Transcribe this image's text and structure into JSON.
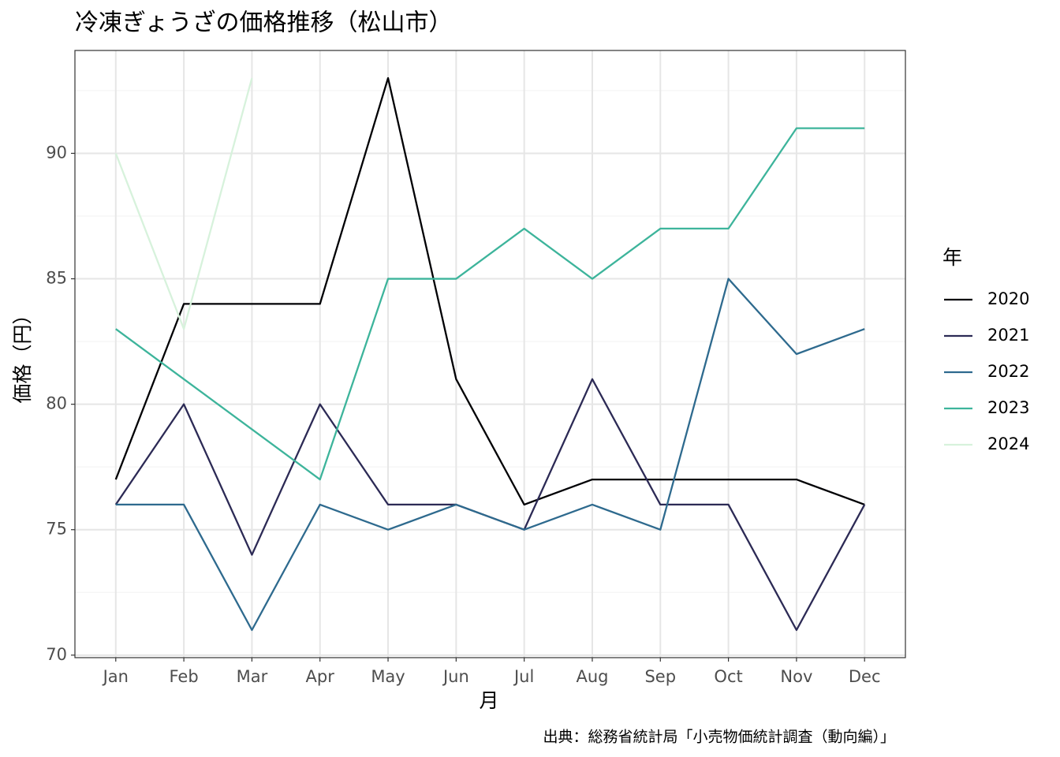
{
  "chart_data": {
    "type": "line",
    "title": "冷凍ぎょうざの価格推移（松山市）",
    "x_label": "月",
    "y_label": "価格（円）",
    "caption": "出典：総務省統計局「小売物価統計調査（動向編）」",
    "legend_title": "年",
    "legend": "right",
    "grid": true,
    "categories": [
      "Jan",
      "Feb",
      "Mar",
      "Apr",
      "May",
      "Jun",
      "Jul",
      "Aug",
      "Sep",
      "Oct",
      "Nov",
      "Dec"
    ],
    "ylim": [
      69.9,
      94.1
    ],
    "yticks": [
      70,
      75,
      80,
      85,
      90
    ],
    "minor_yticks": [
      72.5,
      77.5,
      82.5,
      87.5,
      92.5
    ],
    "series": [
      {
        "name": "2020",
        "color": "#000004",
        "values": [
          77,
          84,
          84,
          84,
          93,
          81,
          76,
          77,
          77,
          77,
          77,
          76
        ]
      },
      {
        "name": "2021",
        "color": "#2c2a55",
        "values": [
          76,
          80,
          74,
          80,
          76,
          76,
          75,
          81,
          76,
          76,
          71,
          76
        ]
      },
      {
        "name": "2022",
        "color": "#2e6a8e",
        "values": [
          76,
          76,
          71,
          76,
          75,
          76,
          75,
          76,
          75,
          85,
          82,
          83
        ]
      },
      {
        "name": "2023",
        "color": "#3db49b",
        "values": [
          83,
          81,
          79,
          77,
          85,
          85,
          87,
          85,
          87,
          87,
          91,
          91
        ]
      },
      {
        "name": "2024",
        "color": "#d7f2dc",
        "values": [
          90,
          83,
          93,
          null,
          null,
          null,
          null,
          null,
          null,
          null,
          null,
          null
        ]
      }
    ]
  }
}
